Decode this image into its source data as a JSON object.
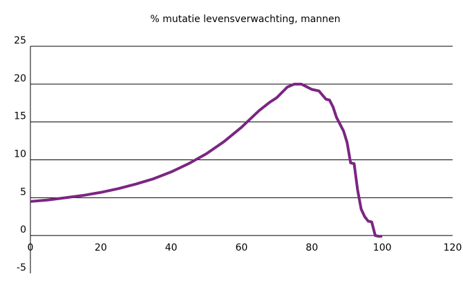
{
  "chart_data": {
    "type": "line",
    "title": "% mutatie levensverwachting, mannen",
    "x": [
      0,
      5,
      10,
      15,
      20,
      25,
      30,
      35,
      40,
      45,
      50,
      55,
      60,
      65,
      68,
      70,
      73,
      75,
      77,
      80,
      82,
      84,
      85,
      86,
      87,
      89,
      90,
      91,
      92,
      93,
      94,
      95,
      96,
      97,
      98,
      99,
      100
    ],
    "series": [
      {
        "name": "mannen",
        "color": "#7b2682",
        "values": [
          4.5,
          4.7,
          5.0,
          5.3,
          5.7,
          6.2,
          6.8,
          7.5,
          8.4,
          9.5,
          10.8,
          12.4,
          14.3,
          16.5,
          17.6,
          18.2,
          19.6,
          20.0,
          20.0,
          19.3,
          19.1,
          18.0,
          17.9,
          17.0,
          15.6,
          13.8,
          12.3,
          9.6,
          9.5,
          6.0,
          3.5,
          2.5,
          1.9,
          1.8,
          0,
          -0.1,
          -0.1
        ]
      }
    ],
    "xlim": [
      0,
      120
    ],
    "xticks": [
      0,
      20,
      40,
      60,
      80,
      100,
      120
    ],
    "ylim": [
      -5,
      25
    ],
    "yticks": [
      -5,
      0,
      5,
      10,
      15,
      20,
      25
    ],
    "grid": true
  }
}
